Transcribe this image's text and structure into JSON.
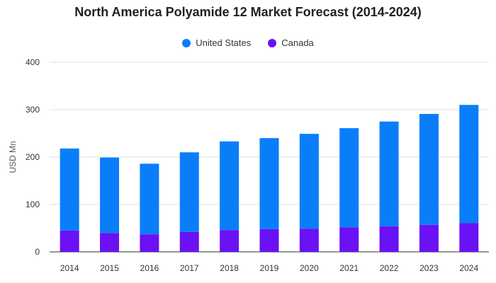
{
  "chart_data": {
    "type": "bar",
    "stacked": true,
    "title": "North America Polyamide 12 Market Forecast (2014-2024)",
    "ylabel": "USD Mn",
    "xlabel": "",
    "ylim": [
      0,
      400
    ],
    "yticks": [
      0,
      100,
      200,
      300,
      400
    ],
    "grid": true,
    "legend_position": "top-center",
    "categories": [
      "2014",
      "2015",
      "2016",
      "2017",
      "2018",
      "2019",
      "2020",
      "2021",
      "2022",
      "2023",
      "2024"
    ],
    "series": [
      {
        "name": "Canada",
        "color": "#6a11f5",
        "values": [
          45,
          40,
          37,
          42,
          46,
          48,
          49,
          52,
          54,
          57,
          61
        ]
      },
      {
        "name": "United States",
        "color": "#0a7ef9",
        "values": [
          173,
          159,
          149,
          168,
          187,
          192,
          200,
          209,
          221,
          234,
          249
        ]
      }
    ],
    "legend_order": [
      "United States",
      "Canada"
    ]
  }
}
